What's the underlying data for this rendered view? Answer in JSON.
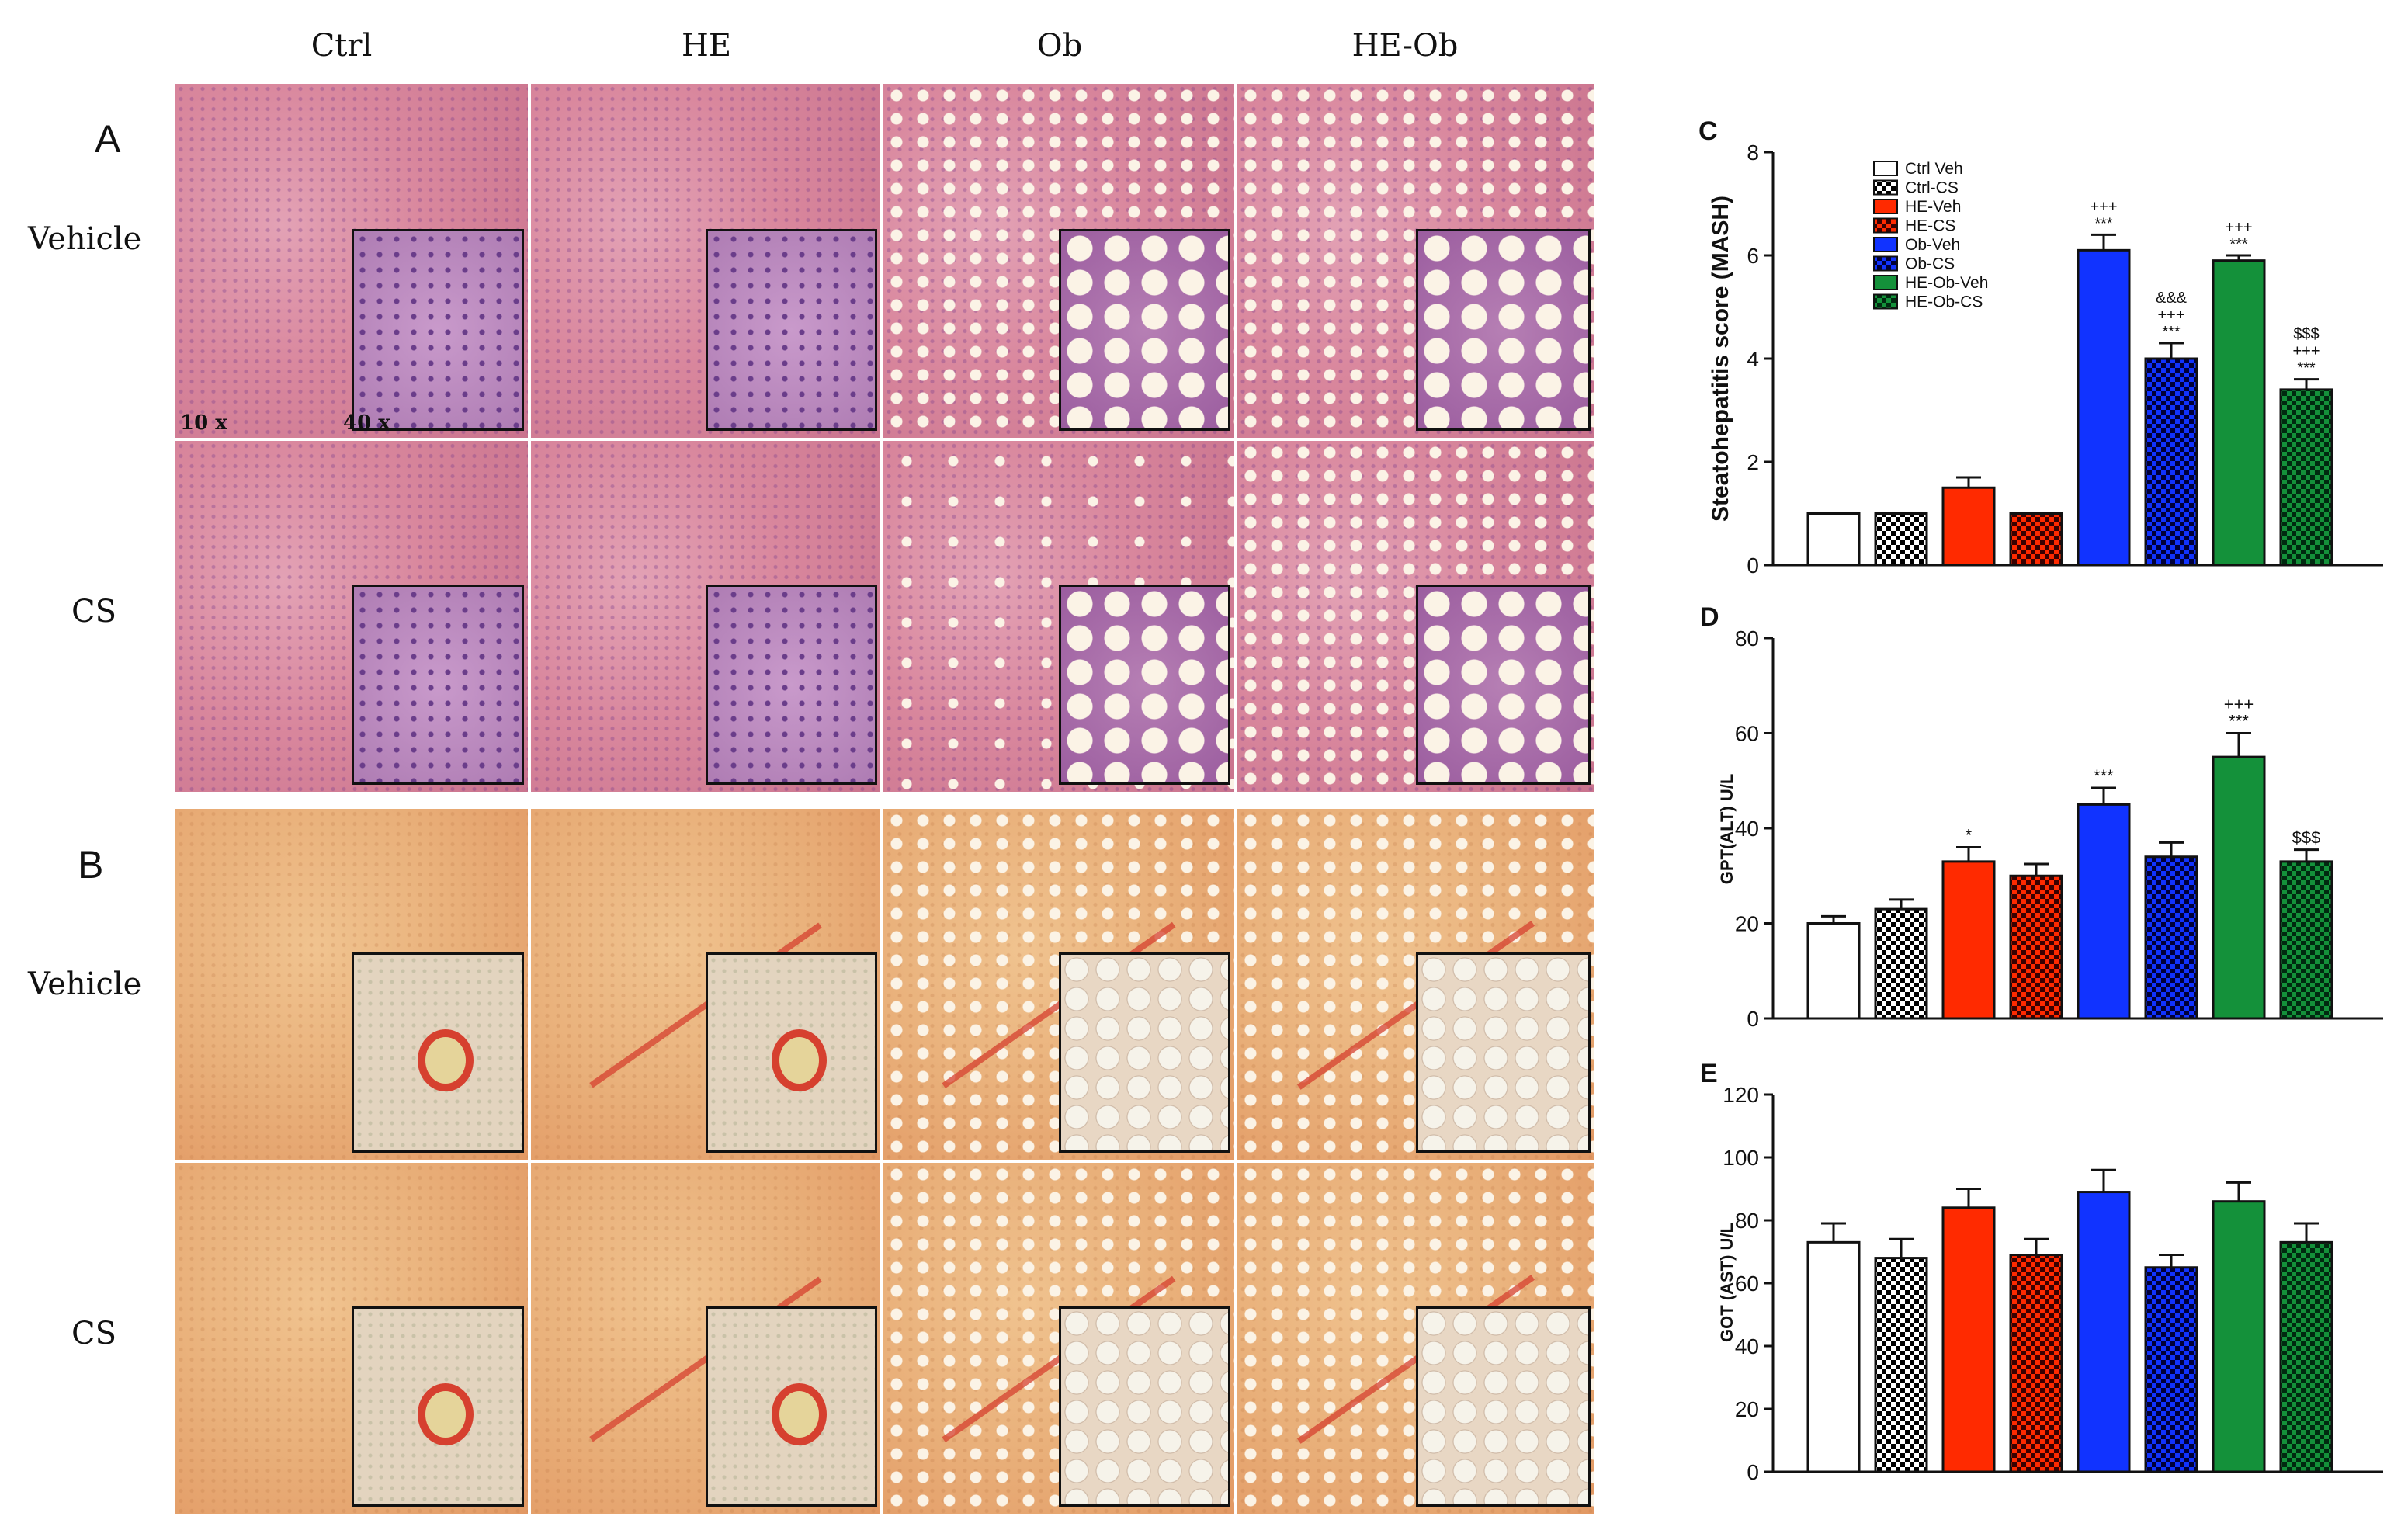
{
  "figure": {
    "columns": [
      "Ctrl",
      "HE",
      "Ob",
      "HE-Ob"
    ],
    "panel_a": {
      "letter": "A",
      "rows": [
        "Vehicle",
        "CS"
      ],
      "stain": "H&E"
    },
    "panel_b": {
      "letter": "B",
      "rows": [
        "Vehicle",
        "CS"
      ],
      "stain": "Sirius red"
    },
    "magnification": {
      "low": "10 x",
      "high": "40 x"
    }
  },
  "colors": {
    "ctrl": "#ffffff",
    "he": "#ff2a00",
    "ob": "#1133ff",
    "heob": "#14913a",
    "he_stain_bg": "#d9879d",
    "sirius_bg": "#e9b07a"
  },
  "chart_data": [
    {
      "type": "bar",
      "letter": "C",
      "ylabel": "Steatohepatitis score (MASH)",
      "ylim": [
        0,
        8
      ],
      "yticks": [
        "0",
        "2",
        "4",
        "6",
        "8"
      ],
      "categories": [
        "Ctrl Veh",
        "Ctrl-CS",
        "HE-Veh",
        "HE-CS",
        "Ob-Veh",
        "Ob-CS",
        "HE-Ob-Veh",
        "HE-Ob-CS"
      ],
      "values": [
        1.0,
        1.0,
        1.5,
        1.0,
        6.1,
        4.0,
        5.9,
        3.4
      ],
      "errors": [
        0,
        0,
        0.2,
        0,
        0.3,
        0.3,
        0.1,
        0.2
      ],
      "annotations": [
        [],
        [],
        [],
        [],
        [
          "+++",
          "***"
        ],
        [
          "&&&",
          "+++",
          "***"
        ],
        [
          "+++",
          "***"
        ],
        [
          "$$$",
          "+++",
          "***"
        ]
      ],
      "legend": [
        "Ctrl Veh",
        "Ctrl-CS",
        "HE-Veh",
        "HE-CS",
        "Ob-Veh",
        "Ob-CS",
        "HE-Ob-Veh",
        "HE-Ob-CS"
      ]
    },
    {
      "type": "bar",
      "letter": "D",
      "ylabel": "GPT(ALT) U/L",
      "ylim": [
        0,
        80
      ],
      "yticks": [
        "0",
        "20",
        "40",
        "60",
        "80"
      ],
      "categories": [
        "Ctrl Veh",
        "Ctrl-CS",
        "HE-Veh",
        "HE-CS",
        "Ob-Veh",
        "Ob-CS",
        "HE-Ob-Veh",
        "HE-Ob-CS"
      ],
      "values": [
        20,
        23,
        33,
        30,
        45,
        34,
        55,
        33
      ],
      "errors": [
        1.5,
        2,
        3,
        2.5,
        3.5,
        3,
        5,
        2.5
      ],
      "annotations": [
        [],
        [],
        [
          "*"
        ],
        [],
        [
          "***"
        ],
        [],
        [
          "+++",
          "***"
        ],
        [
          "$$$"
        ]
      ]
    },
    {
      "type": "bar",
      "letter": "E",
      "ylabel": "GOT (AST) U/L",
      "ylim": [
        0,
        120
      ],
      "yticks": [
        "0",
        "20",
        "40",
        "60",
        "80",
        "100",
        "120"
      ],
      "categories": [
        "Ctrl Veh",
        "Ctrl-CS",
        "HE-Veh",
        "HE-CS",
        "Ob-Veh",
        "Ob-CS",
        "HE-Ob-Veh",
        "HE-Ob-CS"
      ],
      "values": [
        73,
        68,
        84,
        69,
        89,
        65,
        86,
        73
      ],
      "errors": [
        6,
        6,
        6,
        5,
        7,
        4,
        6,
        6
      ],
      "annotations": [
        [],
        [],
        [],
        [],
        [],
        [],
        [],
        []
      ]
    }
  ]
}
